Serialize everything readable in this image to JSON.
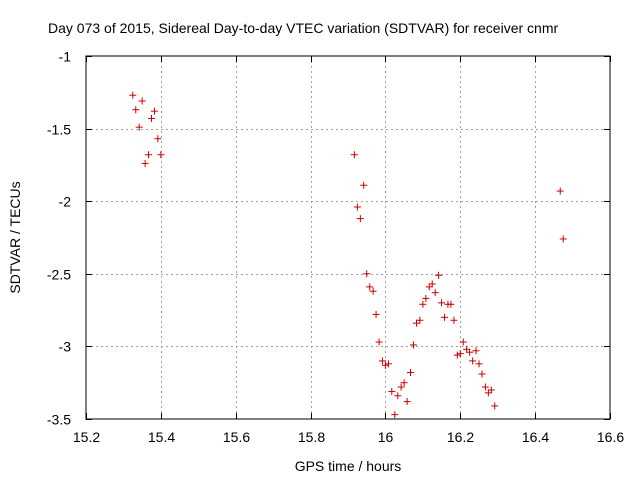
{
  "chart_data": {
    "type": "scatter",
    "title": "Day 073 of 2015, Sidereal Day-to-day VTEC variation (SDTVAR) for receiver cnmr",
    "xlabel": "GPS time / hours",
    "ylabel": "SDTVAR / TECUs",
    "xlim": [
      15.2,
      16.6
    ],
    "ylim": [
      -3.5,
      -1
    ],
    "xticks": [
      "15.2",
      "15.4",
      "15.6",
      "15.8",
      "16",
      "16.2",
      "16.4",
      "16.6"
    ],
    "yticks": [
      "-1",
      "-1.5",
      "-2",
      "-2.5",
      "-3",
      "-3.5"
    ],
    "grid": true,
    "marker": "+",
    "color": "#cc0000",
    "series": [
      {
        "name": "SDTVAR",
        "x": [
          15.325,
          15.333,
          15.342,
          15.35,
          15.358,
          15.367,
          15.375,
          15.383,
          15.392,
          15.4,
          15.917,
          15.925,
          15.933,
          15.942,
          15.95,
          15.958,
          15.967,
          15.975,
          15.983,
          15.992,
          16.0,
          16.008,
          16.017,
          16.025,
          16.033,
          16.042,
          16.05,
          16.058,
          16.067,
          16.075,
          16.083,
          16.092,
          16.1,
          16.108,
          16.117,
          16.125,
          16.133,
          16.142,
          16.15,
          16.158,
          16.167,
          16.175,
          16.183,
          16.192,
          16.2,
          16.208,
          16.217,
          16.225,
          16.233,
          16.242,
          16.25,
          16.258,
          16.267,
          16.275,
          16.283,
          16.292,
          16.467,
          16.475
        ],
        "y": [
          -1.27,
          -1.37,
          -1.49,
          -1.31,
          -1.74,
          -1.68,
          -1.43,
          -1.38,
          -1.57,
          -1.68,
          -1.68,
          -2.04,
          -2.12,
          -1.89,
          -2.5,
          -2.59,
          -2.62,
          -2.78,
          -2.97,
          -3.1,
          -3.13,
          -3.12,
          -3.31,
          -3.47,
          -3.34,
          -3.28,
          -3.25,
          -3.38,
          -3.18,
          -2.99,
          -2.84,
          -2.82,
          -2.71,
          -2.67,
          -2.59,
          -2.57,
          -2.63,
          -2.51,
          -2.7,
          -2.8,
          -2.71,
          -2.71,
          -2.82,
          -3.06,
          -3.05,
          -2.97,
          -3.02,
          -3.04,
          -3.1,
          -3.03,
          -3.12,
          -3.19,
          -3.28,
          -3.32,
          -3.3,
          -3.41,
          -1.93,
          -2.26
        ]
      }
    ]
  }
}
